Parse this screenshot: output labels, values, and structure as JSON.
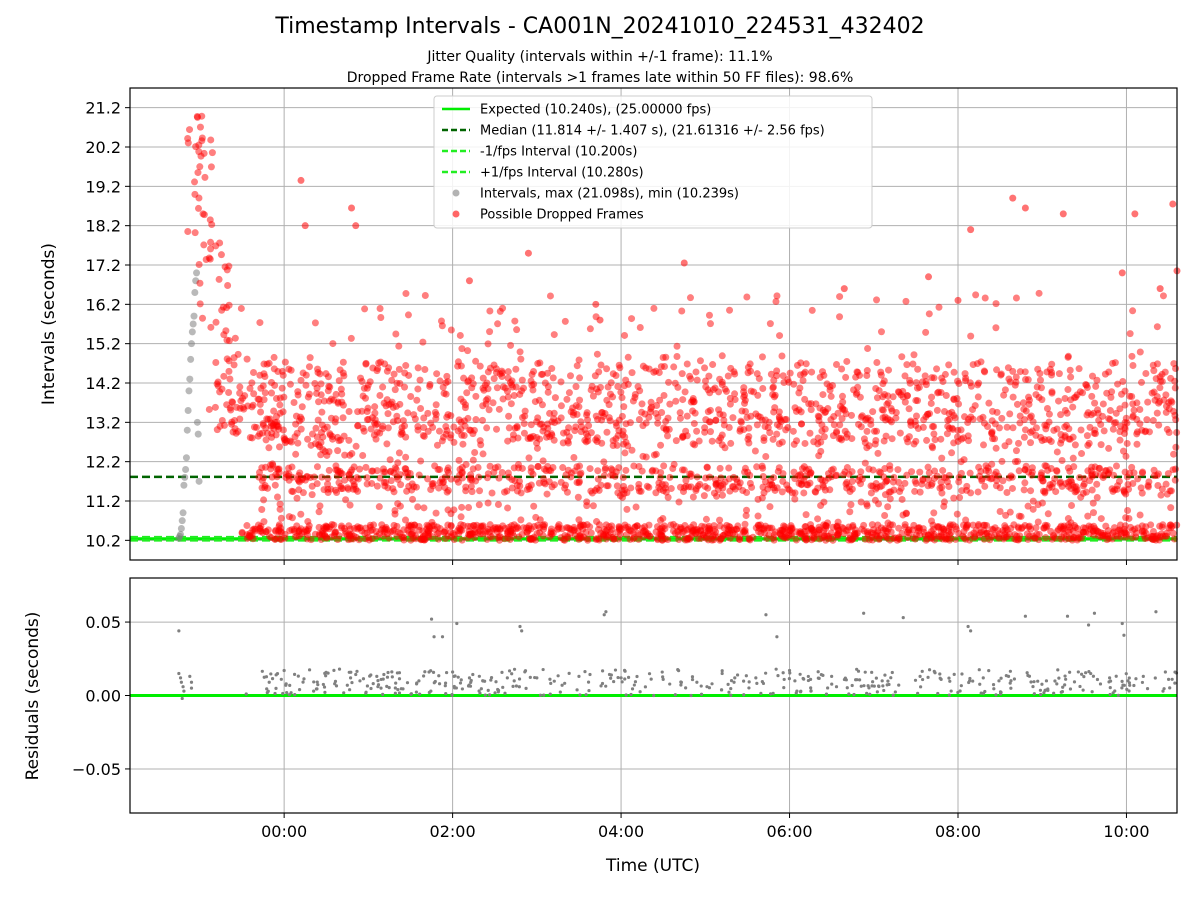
{
  "chart_data": [
    {
      "type": "scatter",
      "title": "Timestamp Intervals - CA001N_20241010_224531_432402",
      "subtitle_lines": [
        "Jitter Quality (intervals within +/-1 frame): 11.1%",
        "Dropped Frame Rate (intervals >1 frames late within 50 FF files): 98.6%"
      ],
      "xlabel": "",
      "ylabel": "Intervals (seconds)",
      "x_axis_unit": "hours since 00:00 UTC",
      "xlim": [
        -1.83,
        10.6
      ],
      "ylim": [
        9.7,
        21.7
      ],
      "yticks": [
        "10.2",
        "11.2",
        "12.2",
        "13.2",
        "14.2",
        "15.2",
        "16.2",
        "17.2",
        "18.2",
        "19.2",
        "20.2",
        "21.2"
      ],
      "grid": true,
      "reference_lines": [
        {
          "name": "Expected (10.240s), (25.00000 fps)",
          "y": 10.24,
          "color": "#00ee00",
          "style": "solid"
        },
        {
          "name": "Median (11.814 +/- 1.407 s), (21.61316 +/- 2.56 fps)",
          "y": 11.814,
          "color": "#006400",
          "style": "dashed"
        },
        {
          "name": "-1/fps Interval (10.200s)",
          "y": 10.2,
          "color": "#22ee22",
          "style": "dashed"
        },
        {
          "name": "+1/fps Interval (10.280s)",
          "y": 10.28,
          "color": "#22ee22",
          "style": "dashed"
        }
      ],
      "series": [
        {
          "name": "Intervals, max (21.098s), min (10.239s)",
          "color": "#808080",
          "points": [
            [
              -1.25,
              10.25
            ],
            [
              -1.24,
              10.3
            ],
            [
              -1.23,
              10.35
            ],
            [
              -1.22,
              10.5
            ],
            [
              -1.21,
              10.7
            ],
            [
              -1.2,
              10.9
            ],
            [
              -1.19,
              11.6
            ],
            [
              -1.18,
              11.8
            ],
            [
              -1.17,
              12.0
            ],
            [
              -1.16,
              12.3
            ],
            [
              -1.15,
              13.0
            ],
            [
              -1.14,
              13.5
            ],
            [
              -1.13,
              14.0
            ],
            [
              -1.12,
              14.3
            ],
            [
              -1.11,
              14.8
            ],
            [
              -1.1,
              15.2
            ],
            [
              -1.09,
              15.5
            ],
            [
              -1.08,
              15.7
            ],
            [
              -1.07,
              15.9
            ],
            [
              -1.06,
              16.5
            ],
            [
              -1.05,
              16.8
            ],
            [
              -1.04,
              17.0
            ],
            [
              -1.03,
              13.2
            ],
            [
              -1.02,
              12.9
            ],
            [
              -1.01,
              11.7
            ]
          ]
        },
        {
          "name": "Possible Dropped Frames",
          "color": "#ff0000",
          "clusters": [
            {
              "x_range": [
                -1.15,
                -0.85
              ],
              "y_range": [
                18.0,
                21.1
              ],
              "count": 30
            },
            {
              "x_range": [
                -1.05,
                -0.6
              ],
              "y_range": [
                15.0,
                18.0
              ],
              "count": 28
            },
            {
              "x_range": [
                -0.9,
                0.0
              ],
              "y_range": [
                12.8,
                15.0
              ],
              "count": 90
            },
            {
              "x_range": [
                -0.5,
                10.6
              ],
              "y_range": [
                10.2,
                10.6
              ],
              "count": 1000
            },
            {
              "x_range": [
                -0.3,
                10.6
              ],
              "y_range": [
                11.4,
                12.1
              ],
              "count": 520
            },
            {
              "x_range": [
                -0.3,
                10.6
              ],
              "y_range": [
                12.6,
                13.5
              ],
              "count": 430
            },
            {
              "x_range": [
                -0.3,
                10.6
              ],
              "y_range": [
                13.5,
                14.7
              ],
              "count": 360
            },
            {
              "x_range": [
                -0.3,
                10.6
              ],
              "y_range": [
                10.6,
                14.9
              ],
              "count": 700
            },
            {
              "x_range": [
                -0.6,
                10.6
              ],
              "y_range": [
                14.9,
                16.5
              ],
              "count": 75
            }
          ],
          "outliers": [
            [
              0.2,
              19.35
            ],
            [
              0.25,
              18.2
            ],
            [
              0.8,
              18.65
            ],
            [
              0.85,
              18.2
            ],
            [
              2.2,
              16.8
            ],
            [
              2.9,
              17.5
            ],
            [
              4.75,
              17.25
            ],
            [
              3.7,
              16.2
            ],
            [
              3.75,
              15.8
            ],
            [
              6.65,
              16.6
            ],
            [
              7.65,
              16.9
            ],
            [
              8.0,
              16.3
            ],
            [
              8.15,
              18.1
            ],
            [
              8.65,
              18.9
            ],
            [
              8.8,
              18.65
            ],
            [
              9.25,
              18.5
            ],
            [
              9.95,
              17.0
            ],
            [
              10.1,
              18.5
            ],
            [
              10.4,
              16.6
            ],
            [
              10.55,
              18.75
            ],
            [
              10.6,
              17.05
            ]
          ]
        }
      ],
      "legend_position": "upper center"
    },
    {
      "type": "scatter",
      "title": "",
      "xlabel": "Time (UTC)",
      "ylabel": "Residuals (seconds)",
      "xlim": [
        -1.83,
        10.6
      ],
      "xticks": [
        "00:00",
        "02:00",
        "04:00",
        "06:00",
        "08:00",
        "10:00"
      ],
      "xtick_values": [
        0,
        2,
        4,
        6,
        8,
        10
      ],
      "ylim": [
        -0.08,
        0.08
      ],
      "yticks": [
        "0.05",
        "0.00",
        "−0.05"
      ],
      "ytick_values": [
        0.05,
        0.0,
        -0.05
      ],
      "grid": true,
      "reference_lines": [
        {
          "y": 0.0,
          "color": "#00ee00",
          "style": "solid"
        }
      ],
      "series": [
        {
          "color": "#808080",
          "points": [
            [
              -1.25,
              0.044
            ],
            [
              -1.25,
              0.015
            ],
            [
              -1.23,
              0.012
            ],
            [
              -1.22,
              0.009
            ],
            [
              -1.2,
              0.006
            ],
            [
              -1.19,
              0.003
            ],
            [
              -1.21,
              -0.002
            ],
            [
              -1.12,
              0.013
            ],
            [
              -1.1,
              0.009
            ],
            [
              -1.1,
              0.005
            ],
            [
              -0.45,
              0.001
            ],
            [
              -0.2,
              0.002
            ],
            [
              0.0,
              0.017
            ],
            [
              0.02,
              0.007
            ],
            [
              0.03,
              0.002
            ],
            [
              0.35,
              0.003
            ],
            [
              0.6,
              0.008
            ],
            [
              0.75,
              0.007
            ],
            [
              0.9,
              0.01
            ],
            [
              1.1,
              0.013
            ],
            [
              1.15,
              0.005
            ],
            [
              1.35,
              0.004
            ],
            [
              1.6,
              0.01
            ],
            [
              1.72,
              0.016
            ],
            [
              1.75,
              0.052
            ],
            [
              1.78,
              0.04
            ],
            [
              1.88,
              0.04
            ],
            [
              2.05,
              0.049
            ],
            [
              2.0,
              0.016
            ],
            [
              2.2,
              0.012
            ],
            [
              2.65,
              0.012
            ],
            [
              2.8,
              0.047
            ],
            [
              2.82,
              0.044
            ],
            [
              3.0,
              0.012
            ],
            [
              3.3,
              0.007
            ],
            [
              3.5,
              0.013
            ],
            [
              3.8,
              0.055
            ],
            [
              3.82,
              0.057
            ],
            [
              4.0,
              0.012
            ],
            [
              4.5,
              0.011
            ],
            [
              4.9,
              0.009
            ],
            [
              5.2,
              0.015
            ],
            [
              5.35,
              0.012
            ],
            [
              5.6,
              0.012
            ],
            [
              5.72,
              0.055
            ],
            [
              5.85,
              0.04
            ],
            [
              6.0,
              0.017
            ],
            [
              6.25,
              0.011
            ],
            [
              6.5,
              0.013
            ],
            [
              6.88,
              0.056
            ],
            [
              7.1,
              0.01
            ],
            [
              7.35,
              0.053
            ],
            [
              7.55,
              0.013
            ],
            [
              7.8,
              0.011
            ],
            [
              8.12,
              0.047
            ],
            [
              8.15,
              0.044
            ],
            [
              8.3,
              0.012
            ],
            [
              8.6,
              0.013
            ],
            [
              8.8,
              0.054
            ],
            [
              9.05,
              0.01
            ],
            [
              9.3,
              0.054
            ],
            [
              9.55,
              0.048
            ],
            [
              9.62,
              0.056
            ],
            [
              9.8,
              0.012
            ],
            [
              9.95,
              0.049
            ],
            [
              9.97,
              0.041
            ],
            [
              10.2,
              0.013
            ],
            [
              10.35,
              0.057
            ],
            [
              10.5,
              0.011
            ]
          ],
          "dense_band": {
            "x_range": [
              -0.3,
              10.6
            ],
            "y_range": [
              0.0,
              0.018
            ],
            "count": 420
          }
        }
      ]
    }
  ]
}
